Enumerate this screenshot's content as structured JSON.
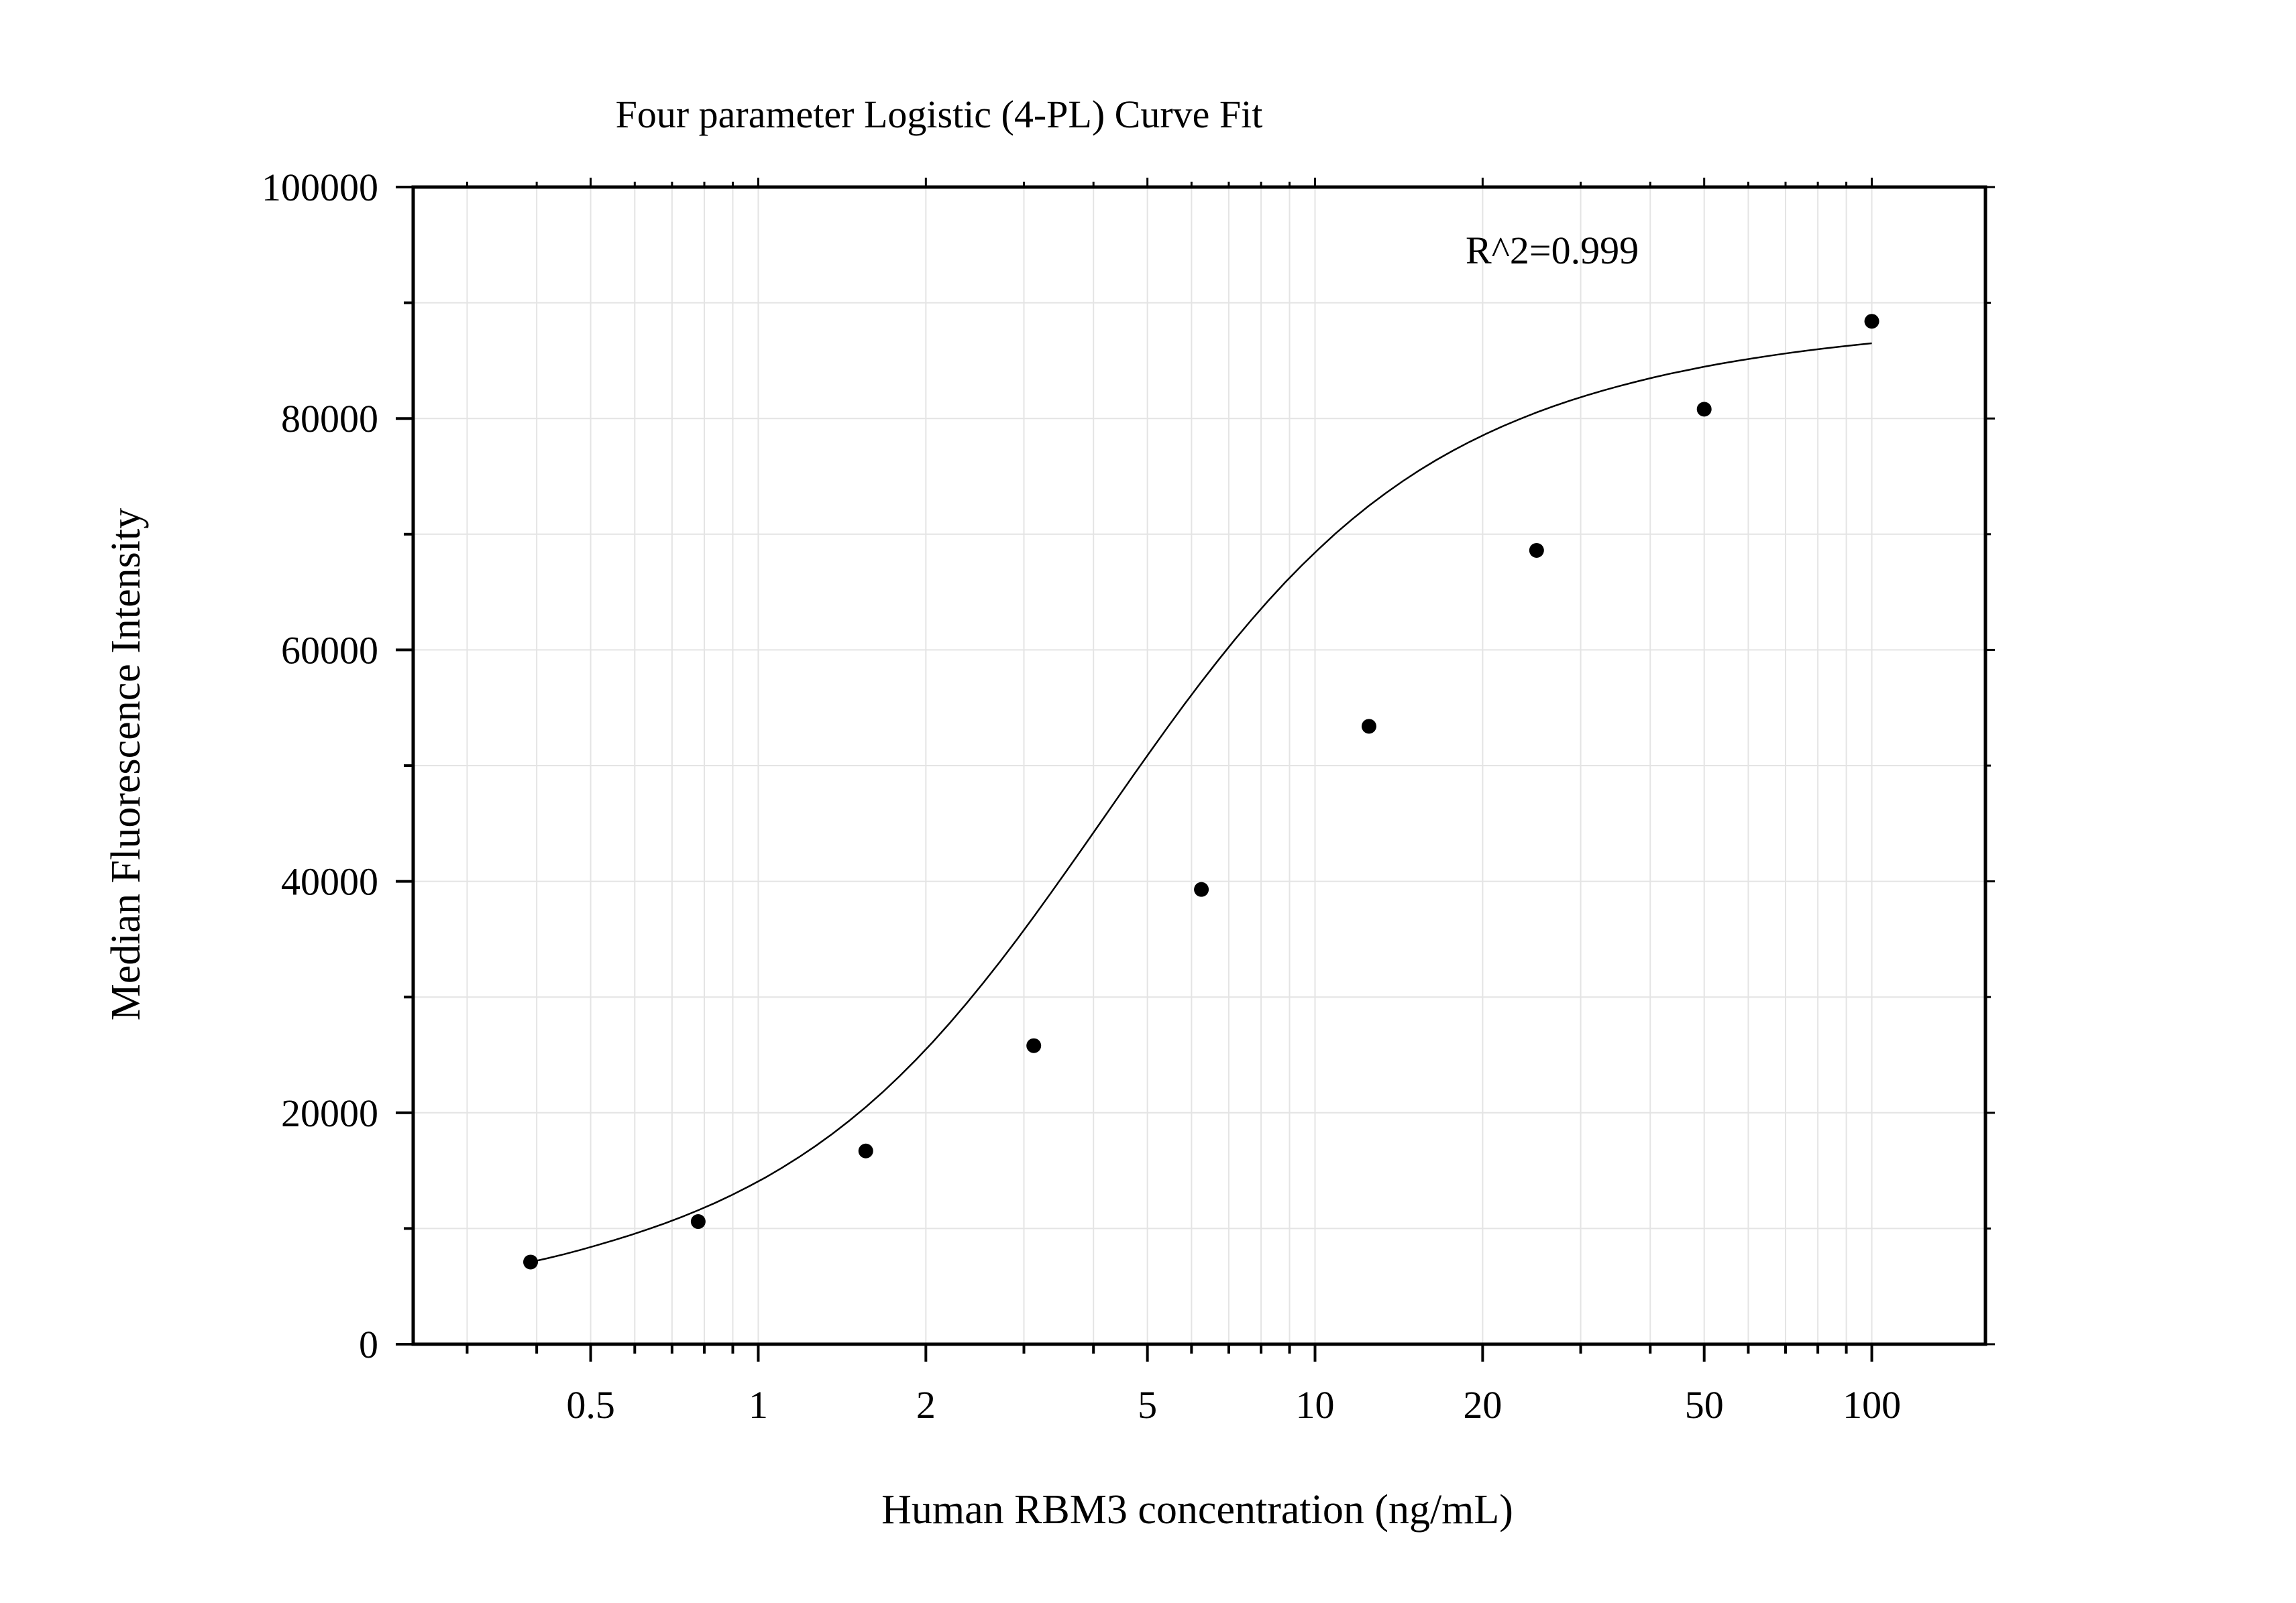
{
  "chart_data": {
    "type": "scatter",
    "title": "Four parameter Logistic (4-PL) Curve Fit",
    "xlabel": "Human RBM3 concentration (ng/mL)",
    "ylabel": "Median Fluorescence Intensity",
    "x_scale": "log",
    "xlim": [
      0.24,
      160
    ],
    "ylim": [
      0,
      100000
    ],
    "x_ticks": [
      0.5,
      1,
      2,
      5,
      10,
      20,
      50,
      100
    ],
    "x_tick_labels": [
      "0.5",
      "1",
      "2",
      "5",
      "10",
      "20",
      "50",
      "100"
    ],
    "y_ticks": [
      0,
      20000,
      40000,
      60000,
      80000,
      100000
    ],
    "y_tick_labels": [
      "0",
      "20000",
      "40000",
      "60000",
      "80000",
      "100000"
    ],
    "grid": true,
    "annotation": "R^2=0.999",
    "series": [
      {
        "x": [
          0.39,
          0.78,
          1.56,
          3.125,
          6.25,
          12.5,
          25,
          50,
          100
        ],
        "y": [
          7100,
          10600,
          16700,
          25800,
          39300,
          53400,
          68600,
          80800,
          88400
        ]
      }
    ],
    "fit_curve": {
      "x_range": [
        0.39,
        100
      ],
      "y": [
        7100,
        7420,
        7775,
        8160,
        8570,
        9000,
        9450,
        9930,
        10440,
        10990,
        11580,
        12210,
        12890,
        13620,
        14400,
        15250,
        16160,
        17130,
        18180,
        19300,
        20500,
        21780,
        23150,
        24600,
        26130,
        27750,
        29450,
        31220,
        33060,
        34960,
        36920,
        38920,
        40960,
        43020,
        45100,
        47180,
        49250,
        51300,
        53320,
        55300,
        57220,
        59080,
        60880,
        62600,
        64250,
        65820,
        67310,
        68710,
        70040,
        71280,
        72450,
        73540,
        74560,
        75510,
        76390,
        77210,
        77970,
        78680,
        79340,
        79950,
        80520,
        81050,
        81540,
        82000,
        82430,
        82830,
        83200,
        83550,
        83880,
        84180,
        84470,
        84740,
        84990,
        85220,
        85440,
        85650,
        85840,
        86020,
        86190,
        86350,
        86500
      ]
    },
    "colors": {
      "marker": "#000000",
      "line": "#000000",
      "grid": "#e4e4e4"
    }
  }
}
